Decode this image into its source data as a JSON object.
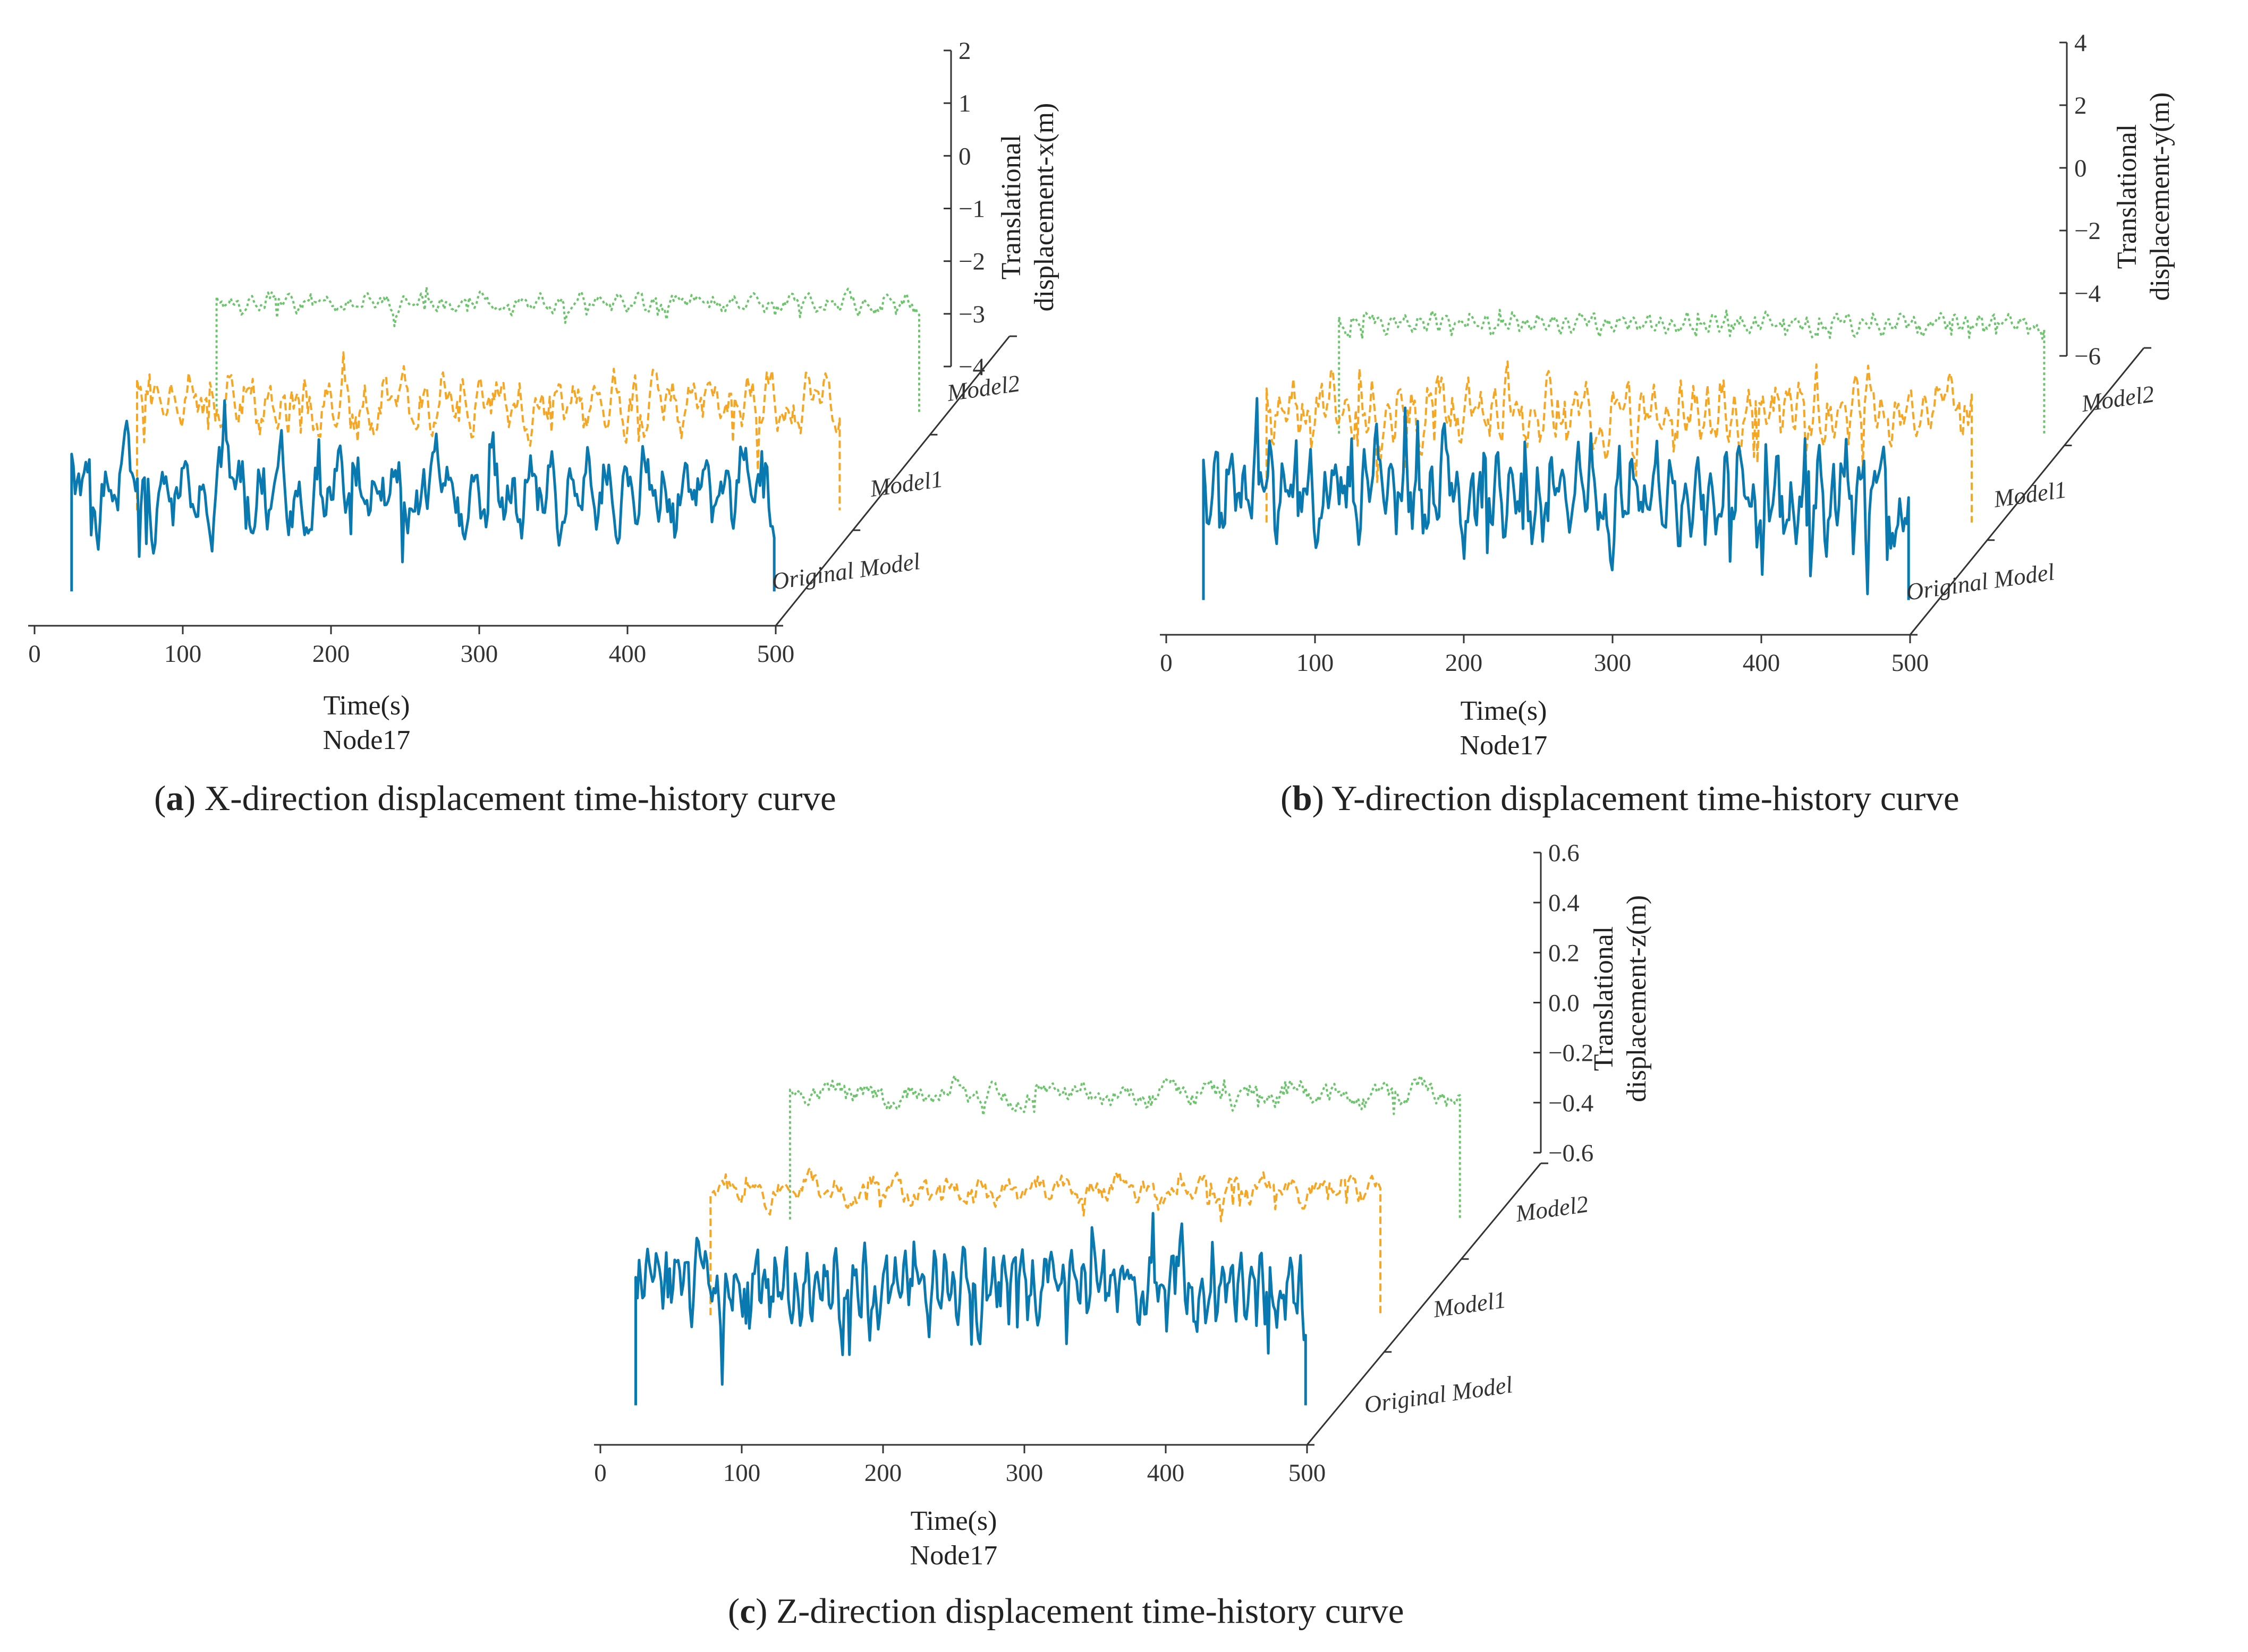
{
  "figure": {
    "panels": [
      {
        "id": "a",
        "caption_letter": "a",
        "caption_text": ") X-direction displacement time-history curve",
        "xlabel": "Time(s)",
        "sublabel": "Node17",
        "ylabel_line1": "Translational",
        "ylabel_line2": "displacement-x(m)"
      },
      {
        "id": "b",
        "caption_letter": "b",
        "caption_text": ") Y-direction displacement time-history curve",
        "xlabel": "Time(s)",
        "sublabel": "Node17",
        "ylabel_line1": "Translational",
        "ylabel_line2": "displacement-y(m)"
      },
      {
        "id": "c",
        "caption_letter": "c",
        "caption_text": ") Z-direction displacement time-history curve",
        "xlabel": "Time(s)",
        "sublabel": "Node17",
        "ylabel_line1": "Translational",
        "ylabel_line2": "displacement-z(m)"
      }
    ]
  },
  "chart_data": [
    {
      "type": "line",
      "panel": "a",
      "xlabel": "Time(s)",
      "ylabel": "Translational displacement-x(m)",
      "xlim": [
        0,
        500
      ],
      "xticks": [
        "0",
        "100",
        "200",
        "300",
        "400",
        "500"
      ],
      "ylim": [
        -4,
        2
      ],
      "yticks": [
        "-4",
        "-3",
        "-2",
        "-1",
        "0",
        "1",
        "2"
      ],
      "grid": false,
      "series": [
        {
          "name": "Original Model",
          "color": "#0a79b0",
          "style": "solid",
          "t_range": [
            25,
            500
          ],
          "mean": -1.3,
          "amplitude": 1.2,
          "period": 13
        },
        {
          "name": "Model1",
          "color": "#f5a623",
          "style": "dashed",
          "t_range": [
            25,
            500
          ],
          "mean": -1.2,
          "amplitude": 1.1,
          "period": 13
        },
        {
          "name": "Model2",
          "color": "#6cc46c",
          "style": "dotted",
          "t_range": [
            25,
            500
          ],
          "mean": -1.0,
          "amplitude": 0.5,
          "period": 13
        }
      ]
    },
    {
      "type": "line",
      "panel": "b",
      "xlabel": "Time(s)",
      "ylabel": "Translational displacement-y(m)",
      "xlim": [
        0,
        500
      ],
      "xticks": [
        "0",
        "100",
        "200",
        "300",
        "400",
        "500"
      ],
      "ylim": [
        -6,
        4
      ],
      "yticks": [
        "-6",
        "-4",
        "-2",
        "0",
        "2",
        "4"
      ],
      "grid": false,
      "series": [
        {
          "name": "Original Model",
          "color": "#0a79b0",
          "style": "solid",
          "t_range": [
            25,
            500
          ],
          "mean": -2.3,
          "amplitude": 2.3,
          "period": 9
        },
        {
          "name": "Model1",
          "color": "#f5a623",
          "style": "dashed",
          "t_range": [
            25,
            500
          ],
          "mean": -2.2,
          "amplitude": 2.2,
          "period": 9
        },
        {
          "name": "Model2",
          "color": "#6cc46c",
          "style": "dotted",
          "t_range": [
            25,
            500
          ],
          "mean": -1.6,
          "amplitude": 1.0,
          "period": 9
        }
      ]
    },
    {
      "type": "line",
      "panel": "c",
      "xlabel": "Time(s)",
      "ylabel": "Translational displacement-z(m)",
      "xlim": [
        0,
        500
      ],
      "xticks": [
        "0",
        "100",
        "200",
        "300",
        "400",
        "500"
      ],
      "ylim": [
        -0.6,
        0.6
      ],
      "yticks": [
        "-0.6",
        "-0.4",
        "-0.2",
        "0.0",
        "0.2",
        "0.4",
        "0.6"
      ],
      "grid": false,
      "series": [
        {
          "name": "Original Model",
          "color": "#0a79b0",
          "style": "solid",
          "t_range": [
            25,
            500
          ],
          "mean": -0.15,
          "amplitude": 0.2,
          "period": 7
        },
        {
          "name": "Model1",
          "color": "#f5a623",
          "style": "dashed",
          "t_range": [
            25,
            500
          ],
          "mean": -0.1,
          "amplitude": 0.12,
          "period": 20
        },
        {
          "name": "Model2",
          "color": "#6cc46c",
          "style": "dotted",
          "t_range": [
            25,
            500
          ],
          "mean": -0.15,
          "amplitude": 0.12,
          "period": 30
        }
      ]
    }
  ]
}
